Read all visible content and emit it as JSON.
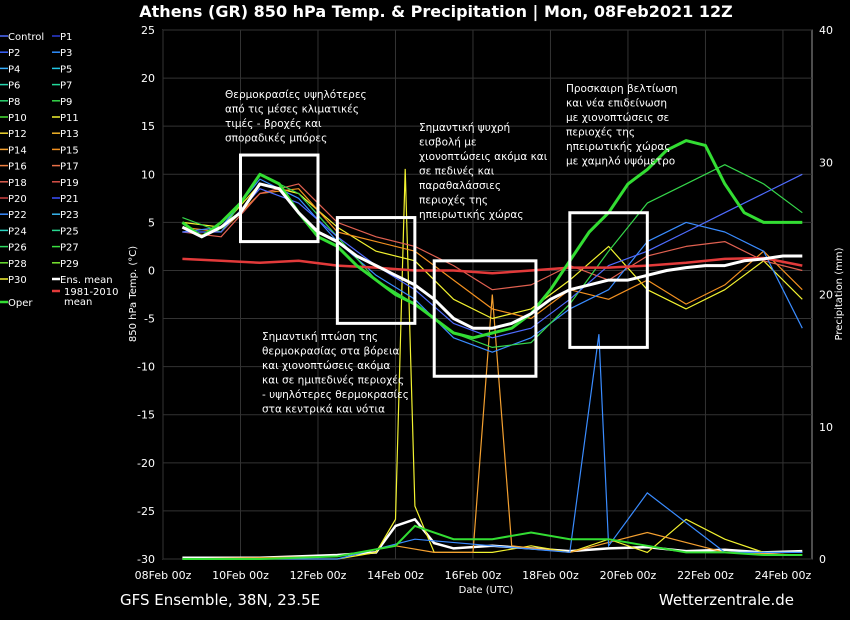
{
  "chart_data": {
    "type": "line",
    "title": "Athens  (GR)  850 hPa Temp. & Precipitation | Mon, 08Feb2021 12Z",
    "subtitle_left": "GFS Ensemble, 38N, 23.5E",
    "subtitle_right": "Wetterzentrale.de",
    "xlabel": "Date (UTC)",
    "ylabel": "850 hPa Temp. (°C)",
    "y2label": "Precipitation (mm)",
    "ylim": [
      -30,
      25
    ],
    "y2lim": [
      0,
      40
    ],
    "yticks": [
      25,
      20,
      15,
      10,
      5,
      0,
      -5,
      -10,
      -15,
      -20,
      -25,
      -30
    ],
    "y2ticks": [
      40,
      30,
      20,
      10,
      0
    ],
    "xlim": [
      "2021-02-08 00:00",
      "2021-02-24 18:00"
    ],
    "xticks": [
      {
        "date": "2021-02-08 00:00",
        "label": "08Feb 00z"
      },
      {
        "date": "2021-02-10 00:00",
        "label": "10Feb 00z"
      },
      {
        "date": "2021-02-12 00:00",
        "label": "12Feb 00z"
      },
      {
        "date": "2021-02-14 00:00",
        "label": "14Feb 00z"
      },
      {
        "date": "2021-02-16 00:00",
        "label": "16Feb 00z"
      },
      {
        "date": "2021-02-18 00:00",
        "label": "18Feb 00z"
      },
      {
        "date": "2021-02-20 00:00",
        "label": "20Feb 00z"
      },
      {
        "date": "2021-02-22 00:00",
        "label": "22Feb 00z"
      },
      {
        "date": "2021-02-24 00:00",
        "label": "24Feb 00z"
      }
    ],
    "grid": true,
    "legend_position": "left",
    "legend": [
      {
        "name": "Control",
        "color": "#4f6cff"
      },
      {
        "name": "P1",
        "color": "#2a3bd6"
      },
      {
        "name": "P2",
        "color": "#3a63ff"
      },
      {
        "name": "P3",
        "color": "#2f8fff"
      },
      {
        "name": "P4",
        "color": "#3ab0ff"
      },
      {
        "name": "P5",
        "color": "#22c7e6"
      },
      {
        "name": "P6",
        "color": "#27d6b0"
      },
      {
        "name": "P7",
        "color": "#22d89a"
      },
      {
        "name": "P8",
        "color": "#2ad26e"
      },
      {
        "name": "P9",
        "color": "#35d64a"
      },
      {
        "name": "P10",
        "color": "#47e036"
      },
      {
        "name": "P11",
        "color": "#f2f230"
      },
      {
        "name": "P12",
        "color": "#f0d630"
      },
      {
        "name": "P13",
        "color": "#f2b328"
      },
      {
        "name": "P14",
        "color": "#f4a030"
      },
      {
        "name": "P15",
        "color": "#f29020"
      },
      {
        "name": "P16",
        "color": "#f08040"
      },
      {
        "name": "P17",
        "color": "#e87048"
      },
      {
        "name": "P18",
        "color": "#e06050"
      },
      {
        "name": "P19",
        "color": "#d85048"
      },
      {
        "name": "P20",
        "color": "#cc4040"
      },
      {
        "name": "P21",
        "color": "#3a50ff"
      },
      {
        "name": "P22",
        "color": "#3a8cff"
      },
      {
        "name": "P23",
        "color": "#38b8f0"
      },
      {
        "name": "P24",
        "color": "#2ad2c0"
      },
      {
        "name": "P25",
        "color": "#28d890"
      },
      {
        "name": "P26",
        "color": "#30da60"
      },
      {
        "name": "P27",
        "color": "#3ade40"
      },
      {
        "name": "P28",
        "color": "#6ae030"
      },
      {
        "name": "P29",
        "color": "#7ae830"
      },
      {
        "name": "P30",
        "color": "#f2f030"
      },
      {
        "name": "Ens. mean",
        "color": "#ffffff"
      },
      {
        "name": "1981-2010 mean",
        "color": "#e23a3a"
      },
      {
        "name": "Oper",
        "color": "#33dd33"
      }
    ],
    "series": [
      {
        "name": "Ens. mean",
        "color": "#ffffff",
        "x": [
          "2021-02-08 12:00",
          "2021-02-09 00:00",
          "2021-02-09 12:00",
          "2021-02-10 00:00",
          "2021-02-10 12:00",
          "2021-02-11 00:00",
          "2021-02-11 12:00",
          "2021-02-12 00:00",
          "2021-02-12 12:00",
          "2021-02-13 00:00",
          "2021-02-13 12:00",
          "2021-02-14 00:00",
          "2021-02-14 12:00",
          "2021-02-15 00:00",
          "2021-02-15 12:00",
          "2021-02-16 00:00",
          "2021-02-16 12:00",
          "2021-02-17 00:00",
          "2021-02-17 12:00",
          "2021-02-18 00:00",
          "2021-02-18 12:00",
          "2021-02-19 00:00",
          "2021-02-19 12:00",
          "2021-02-20 00:00",
          "2021-02-20 12:00",
          "2021-02-21 00:00",
          "2021-02-21 12:00",
          "2021-02-22 00:00",
          "2021-02-22 12:00",
          "2021-02-23 00:00",
          "2021-02-23 12:00",
          "2021-02-24 00:00",
          "2021-02-24 12:00"
        ],
        "y": [
          4.5,
          3.5,
          4.5,
          6.0,
          9.0,
          8.5,
          6.0,
          4.0,
          3.0,
          1.5,
          0.5,
          -0.5,
          -1.5,
          -3.0,
          -5.0,
          -6.0,
          -6.0,
          -5.5,
          -4.5,
          -3.0,
          -2.0,
          -1.5,
          -1.0,
          -1.0,
          -0.5,
          0.0,
          0.3,
          0.5,
          0.5,
          1.0,
          1.2,
          1.5,
          1.5
        ]
      },
      {
        "name": "Oper",
        "color": "#33dd33",
        "x": [
          "2021-02-08 12:00",
          "2021-02-09 00:00",
          "2021-02-09 12:00",
          "2021-02-10 00:00",
          "2021-02-10 12:00",
          "2021-02-11 00:00",
          "2021-02-11 12:00",
          "2021-02-12 00:00",
          "2021-02-12 12:00",
          "2021-02-13 00:00",
          "2021-02-13 12:00",
          "2021-02-14 00:00",
          "2021-02-14 12:00",
          "2021-02-15 00:00",
          "2021-02-15 12:00",
          "2021-02-16 00:00",
          "2021-02-16 12:00",
          "2021-02-17 00:00",
          "2021-02-17 12:00",
          "2021-02-18 00:00",
          "2021-02-18 12:00",
          "2021-02-19 00:00",
          "2021-02-19 12:00",
          "2021-02-20 00:00",
          "2021-02-20 12:00",
          "2021-02-21 00:00",
          "2021-02-21 12:00",
          "2021-02-22 00:00",
          "2021-02-22 12:00",
          "2021-02-23 00:00",
          "2021-02-23 12:00",
          "2021-02-24 00:00",
          "2021-02-24 12:00"
        ],
        "y": [
          5.0,
          3.5,
          5.0,
          7.0,
          10.0,
          9.0,
          6.0,
          3.5,
          2.5,
          0.5,
          -1.0,
          -2.5,
          -3.5,
          -5.0,
          -6.5,
          -7.0,
          -6.5,
          -6.0,
          -4.5,
          -2.0,
          1.0,
          4.0,
          6.0,
          9.0,
          10.5,
          12.5,
          13.5,
          13.0,
          9.0,
          6.0,
          5.0,
          5.0,
          5.0
        ]
      },
      {
        "name": "1981-2010 mean",
        "color": "#e23a3a",
        "x": [
          "2021-02-08 12:00",
          "2021-02-09 12:00",
          "2021-02-10 12:00",
          "2021-02-11 12:00",
          "2021-02-12 12:00",
          "2021-02-13 12:00",
          "2021-02-14 12:00",
          "2021-02-15 12:00",
          "2021-02-16 12:00",
          "2021-02-17 12:00",
          "2021-02-18 12:00",
          "2021-02-19 12:00",
          "2021-02-20 12:00",
          "2021-02-21 12:00",
          "2021-02-22 12:00",
          "2021-02-23 12:00",
          "2021-02-24 12:00"
        ],
        "y": [
          1.2,
          1.0,
          0.8,
          1.0,
          0.5,
          0.3,
          0.0,
          0.0,
          -0.3,
          0.0,
          0.3,
          0.3,
          0.5,
          0.8,
          1.2,
          1.3,
          0.5
        ]
      },
      {
        "name": "Control",
        "color": "#4f6cff",
        "x": [
          "2021-02-08 12:00",
          "2021-02-09 12:00",
          "2021-02-10 12:00",
          "2021-02-11 12:00",
          "2021-02-12 12:00",
          "2021-02-13 12:00",
          "2021-02-14 12:00",
          "2021-02-15 12:00",
          "2021-02-16 12:00",
          "2021-02-17 12:00",
          "2021-02-18 12:00",
          "2021-02-19 12:00",
          "2021-02-20 12:00",
          "2021-02-21 12:00",
          "2021-02-22 12:00",
          "2021-02-23 12:00",
          "2021-02-24 12:00"
        ],
        "y": [
          4.0,
          4.0,
          8.5,
          7.0,
          3.5,
          0.5,
          -2.0,
          -5.5,
          -7.0,
          -6.0,
          -3.0,
          0.5,
          2.0,
          4.0,
          6.0,
          8.0,
          10.0
        ]
      },
      {
        "name": "P11",
        "color": "#f2f230",
        "x": [
          "2021-02-08 12:00",
          "2021-02-09 12:00",
          "2021-02-10 12:00",
          "2021-02-11 12:00",
          "2021-02-12 12:00",
          "2021-02-13 12:00",
          "2021-02-14 12:00",
          "2021-02-15 12:00",
          "2021-02-16 12:00",
          "2021-02-17 12:00",
          "2021-02-18 12:00",
          "2021-02-19 12:00",
          "2021-02-20 12:00",
          "2021-02-21 12:00",
          "2021-02-22 12:00",
          "2021-02-23 12:00",
          "2021-02-24 12:00"
        ],
        "y": [
          5.0,
          4.5,
          9.0,
          8.0,
          4.5,
          2.0,
          1.0,
          -3.0,
          -5.0,
          -4.0,
          -1.0,
          2.5,
          -2.0,
          -4.0,
          -2.0,
          1.0,
          -3.0
        ]
      },
      {
        "name": "P15",
        "color": "#f29020",
        "x": [
          "2021-02-08 12:00",
          "2021-02-09 12:00",
          "2021-02-10 12:00",
          "2021-02-11 12:00",
          "2021-02-12 12:00",
          "2021-02-13 12:00",
          "2021-02-14 12:00",
          "2021-02-15 12:00",
          "2021-02-16 12:00",
          "2021-02-17 12:00",
          "2021-02-18 12:00",
          "2021-02-19 12:00",
          "2021-02-20 12:00",
          "2021-02-21 12:00",
          "2021-02-22 12:00",
          "2021-02-23 12:00",
          "2021-02-24 12:00"
        ],
        "y": [
          4.5,
          4.0,
          8.0,
          8.5,
          4.0,
          3.0,
          2.0,
          -1.0,
          -4.0,
          -5.0,
          -2.0,
          -3.0,
          -1.0,
          -3.5,
          -1.5,
          2.0,
          -2.0
        ]
      },
      {
        "name": "P22",
        "color": "#3a8cff",
        "x": [
          "2021-02-08 12:00",
          "2021-02-09 12:00",
          "2021-02-10 12:00",
          "2021-02-11 12:00",
          "2021-02-12 12:00",
          "2021-02-13 12:00",
          "2021-02-14 12:00",
          "2021-02-15 12:00",
          "2021-02-16 12:00",
          "2021-02-17 12:00",
          "2021-02-18 12:00",
          "2021-02-19 12:00",
          "2021-02-20 12:00",
          "2021-02-21 12:00",
          "2021-02-22 12:00",
          "2021-02-23 12:00",
          "2021-02-24 12:00"
        ],
        "y": [
          4.0,
          4.5,
          9.5,
          7.5,
          3.0,
          -0.5,
          -3.0,
          -7.0,
          -8.5,
          -7.0,
          -4.0,
          -2.0,
          3.0,
          5.0,
          4.0,
          2.0,
          -6.0
        ]
      },
      {
        "name": "P9",
        "color": "#35d64a",
        "x": [
          "2021-02-08 12:00",
          "2021-02-09 12:00",
          "2021-02-10 12:00",
          "2021-02-11 12:00",
          "2021-02-12 12:00",
          "2021-02-13 12:00",
          "2021-02-14 12:00",
          "2021-02-15 12:00",
          "2021-02-16 12:00",
          "2021-02-17 12:00",
          "2021-02-18 12:00",
          "2021-02-19 12:00",
          "2021-02-20 12:00",
          "2021-02-21 12:00",
          "2021-02-22 12:00",
          "2021-02-23 12:00",
          "2021-02-24 12:00"
        ],
        "y": [
          5.5,
          4.0,
          10.0,
          8.0,
          3.5,
          -1.0,
          -3.5,
          -6.5,
          -8.0,
          -7.5,
          -3.5,
          2.0,
          7.0,
          9.0,
          11.0,
          9.0,
          6.0
        ]
      },
      {
        "name": "P18",
        "color": "#e06050",
        "x": [
          "2021-02-08 12:00",
          "2021-02-09 12:00",
          "2021-02-10 12:00",
          "2021-02-11 12:00",
          "2021-02-12 12:00",
          "2021-02-13 12:00",
          "2021-02-14 12:00",
          "2021-02-15 12:00",
          "2021-02-16 12:00",
          "2021-02-17 12:00",
          "2021-02-18 12:00",
          "2021-02-19 12:00",
          "2021-02-20 12:00",
          "2021-02-21 12:00",
          "2021-02-22 12:00",
          "2021-02-23 12:00",
          "2021-02-24 12:00"
        ],
        "y": [
          4.0,
          3.5,
          8.0,
          9.0,
          5.0,
          3.5,
          2.5,
          0.5,
          -2.0,
          -1.5,
          0.5,
          -1.0,
          1.5,
          2.5,
          3.0,
          1.0,
          0.0
        ]
      }
    ],
    "precipitation": [
      {
        "name": "Ens. mean",
        "color": "#ffffff",
        "x": [
          "2021-02-08 12:00",
          "2021-02-10 12:00",
          "2021-02-12 12:00",
          "2021-02-13 12:00",
          "2021-02-14 00:00",
          "2021-02-14 12:00",
          "2021-02-15 00:00",
          "2021-02-15 12:00",
          "2021-02-16 12:00",
          "2021-02-17 12:00",
          "2021-02-18 12:00",
          "2021-02-19 12:00",
          "2021-02-20 12:00",
          "2021-02-21 12:00",
          "2021-02-22 12:00",
          "2021-02-23 12:00",
          "2021-02-24 12:00"
        ],
        "y": [
          0.1,
          0.1,
          0.3,
          0.5,
          2.5,
          3.0,
          1.2,
          0.8,
          1.0,
          0.8,
          0.6,
          0.8,
          0.9,
          0.6,
          0.7,
          0.5,
          0.6
        ]
      },
      {
        "name": "P11",
        "color": "#f2f230",
        "x": [
          "2021-02-08 12:00",
          "2021-02-10 12:00",
          "2021-02-12 12:00",
          "2021-02-13 12:00",
          "2021-02-14 00:00",
          "2021-02-14 06:00",
          "2021-02-14 12:00",
          "2021-02-15 00:00",
          "2021-02-16 12:00",
          "2021-02-17 12:00",
          "2021-02-18 12:00",
          "2021-02-19 12:00",
          "2021-02-20 12:00",
          "2021-02-21 12:00",
          "2021-02-22 12:00",
          "2021-02-23 12:00",
          "2021-02-24 12:00"
        ],
        "y": [
          0.0,
          0.0,
          0.0,
          0.5,
          3.0,
          29.5,
          4.0,
          0.5,
          0.5,
          1.0,
          0.5,
          1.5,
          0.5,
          3.0,
          1.5,
          0.5,
          0.5
        ]
      },
      {
        "name": "P14",
        "color": "#f4a030",
        "x": [
          "2021-02-08 12:00",
          "2021-02-12 12:00",
          "2021-02-14 00:00",
          "2021-02-15 00:00",
          "2021-02-16 00:00",
          "2021-02-16 12:00",
          "2021-02-17 00:00",
          "2021-02-18 12:00",
          "2021-02-20 12:00",
          "2021-02-22 12:00",
          "2021-02-24 12:00"
        ],
        "y": [
          0.0,
          0.2,
          1.0,
          0.5,
          0.5,
          20.0,
          1.0,
          0.5,
          2.0,
          0.5,
          0.3
        ]
      },
      {
        "name": "P22",
        "color": "#3a8cff",
        "x": [
          "2021-02-08 12:00",
          "2021-02-12 12:00",
          "2021-02-14 12:00",
          "2021-02-16 12:00",
          "2021-02-18 12:00",
          "2021-02-19 06:00",
          "2021-02-19 12:00",
          "2021-02-20 12:00",
          "2021-02-22 12:00",
          "2021-02-24 12:00"
        ],
        "y": [
          0.0,
          0.0,
          1.5,
          1.0,
          0.5,
          17.0,
          1.0,
          5.0,
          0.5,
          0.5
        ]
      },
      {
        "name": "Oper",
        "color": "#33dd33",
        "x": [
          "2021-02-08 12:00",
          "2021-02-10 12:00",
          "2021-02-12 12:00",
          "2021-02-14 00:00",
          "2021-02-14 12:00",
          "2021-02-15 12:00",
          "2021-02-16 12:00",
          "2021-02-17 12:00",
          "2021-02-18 12:00",
          "2021-02-19 12:00",
          "2021-02-20 12:00",
          "2021-02-21 12:00",
          "2021-02-22 12:00",
          "2021-02-23 12:00",
          "2021-02-24 12:00"
        ],
        "y": [
          0.0,
          0.0,
          0.2,
          1.0,
          2.5,
          1.5,
          1.5,
          2.0,
          1.5,
          1.5,
          1.0,
          0.5,
          0.5,
          0.3,
          0.3
        ]
      }
    ],
    "annotations": [
      {
        "lines": [
          "Θερμοκρασίες υψηλότερες",
          "από τις μέσες κλιματικές",
          "τιμές - βροχές και",
          "σποραδικές μπόρες"
        ],
        "box": {
          "x0": "2021-02-10 00:00",
          "x1": "2021-02-12 00:00",
          "y0": 3,
          "y1": 12
        }
      },
      {
        "lines": [
          "Σημαντική πτώση της",
          "θερμοκρασίας στα βόρεια",
          "και χιονοπτώσεις ακόμα",
          "και σε ημιπεδινές περιοχές",
          "- υψηλότερες θερμοκρασίες",
          "στα κεντρικά και νότια"
        ],
        "box": {
          "x0": "2021-02-12 12:00",
          "x1": "2021-02-14 12:00",
          "y0": -5.5,
          "y1": 5.5
        }
      },
      {
        "lines": [
          "Σημαντική ψυχρή",
          "εισβολή με",
          "χιονοπτώσεις ακόμα και",
          "σε πεδινές και",
          "παραθαλάσσιες",
          "περιοχές της",
          "ηπειρωτικής χώρας"
        ],
        "box": {
          "x0": "2021-02-15 00:00",
          "x1": "2021-02-17 15:00",
          "y0": -11,
          "y1": 1
        }
      },
      {
        "lines": [
          "Προσκαιρη βελτίωση",
          "και νέα επιδείνωση",
          "με χιονοπτώσεις σε",
          "περιοχές της",
          "ηπειρωτικής χώρας",
          "με χαμηλό υψόμετρο"
        ],
        "box": {
          "x0": "2021-02-18 12:00",
          "x1": "2021-02-20 12:00",
          "y0": -8,
          "y1": 6
        }
      }
    ]
  }
}
